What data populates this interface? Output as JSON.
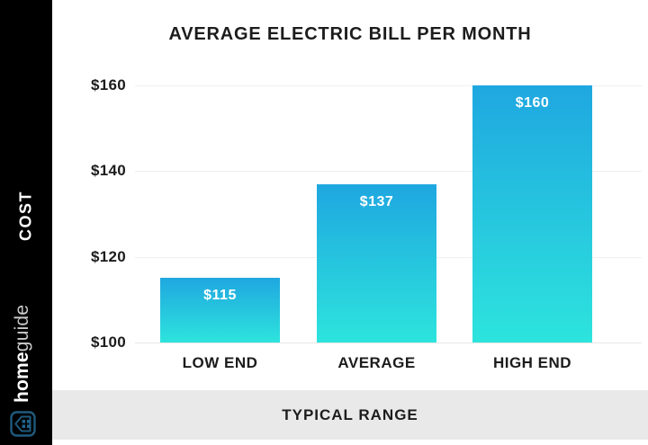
{
  "title": "AVERAGE ELECTRIC BILL PER MONTH",
  "sidebar": {
    "cost_label": "COST",
    "brand_bold": "home",
    "brand_light": "guide",
    "brand_icon": "homeguide-house-icon"
  },
  "footer": {
    "label": "TYPICAL RANGE"
  },
  "colors": {
    "sidebar_bg": "#000000",
    "chart_bg": "#FFFFFF",
    "bar_gradient_top": "#1FA7E0",
    "bar_gradient_bottom": "#2DE4DD",
    "gridline": "#EFEFEF",
    "footer_bg": "#E9E9E9",
    "text_dark": "#1C1C1C",
    "value_label_text": "#FFFFFF",
    "brand_icon_color": "#1E5A7D",
    "brand_guide_text": "#C9C9C9"
  },
  "chart_data": {
    "type": "bar",
    "title": "AVERAGE ELECTRIC BILL PER MONTH",
    "categories": [
      "LOW END",
      "AVERAGE",
      "HIGH END"
    ],
    "values": [
      115,
      137,
      160
    ],
    "value_labels": [
      "$115",
      "$137",
      "$160"
    ],
    "ylabel": "COST",
    "xlabel": "TYPICAL RANGE",
    "ylim": [
      100,
      160
    ],
    "ytick_values": [
      160,
      140,
      120,
      100
    ],
    "ytick_labels": [
      "$160",
      "$140",
      "$120",
      "$100"
    ],
    "grid": true,
    "legend": false,
    "bar_color_gradient": [
      "#1FA7E0",
      "#2DE4DD"
    ]
  }
}
